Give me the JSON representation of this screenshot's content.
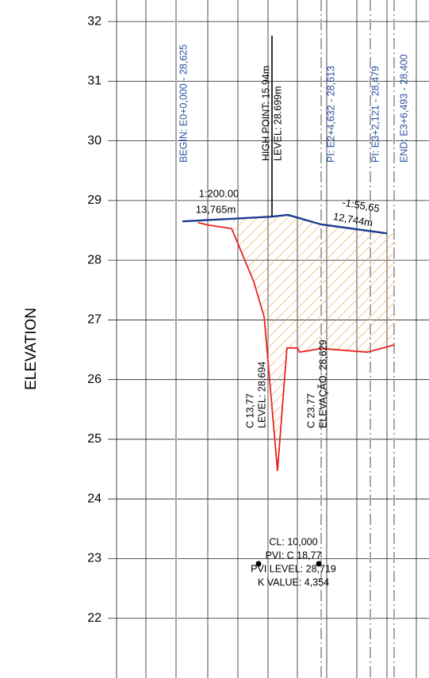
{
  "chart_data": {
    "type": "profile",
    "y_label": "ELEVATION",
    "ylim": [
      21,
      32.36
    ],
    "yticks": [
      22,
      23,
      24,
      25,
      26,
      27,
      28,
      29,
      30,
      31,
      32
    ],
    "xlim": [
      -18.3,
      77.8
    ],
    "grid": true,
    "series": [
      {
        "color": "#1a3a8f",
        "x": [
          1.95,
          29.5,
          34.4,
          44.6,
          64.9
        ],
        "values": [
          28.65,
          28.73,
          28.76,
          28.6,
          28.45
        ]
      },
      {
        "color": "#e8231f",
        "x": [
          6.8,
          9.8,
          17.1,
          23.9,
          27.1,
          31.2,
          34.1,
          37.3,
          38.0,
          44.6,
          49.5,
          58.8,
          67.1
        ],
        "values": [
          28.63,
          28.59,
          28.53,
          27.64,
          27.05,
          24.47,
          26.53,
          26.53,
          26.46,
          26.52,
          26.5,
          26.46,
          26.58
        ]
      }
    ],
    "hatch_color": "#f3a65a",
    "annotations": [
      "BEGIN:  E0+0,000 - 28,625",
      "HIGH POINT: 15.94m",
      "LEVEL: 28.699m",
      "PI:  E2+4,632 - 28,613",
      "PI:  E3+2,121 - 28,479",
      "END:  E3+6,493 - 28,400",
      "C 13,77",
      "LEVEL: 28,694",
      "C 23.77",
      "ELEVAÇÃO: 28,629"
    ],
    "grade_labels": [
      "1:200.00",
      "13,765m",
      "-1:55,65",
      "12,744m"
    ],
    "curve_notes": [
      "CL: 10,000",
      "PVI: C 18,77",
      "PVI LEVEL: 28,719",
      "K VALUE: 4,354"
    ]
  }
}
